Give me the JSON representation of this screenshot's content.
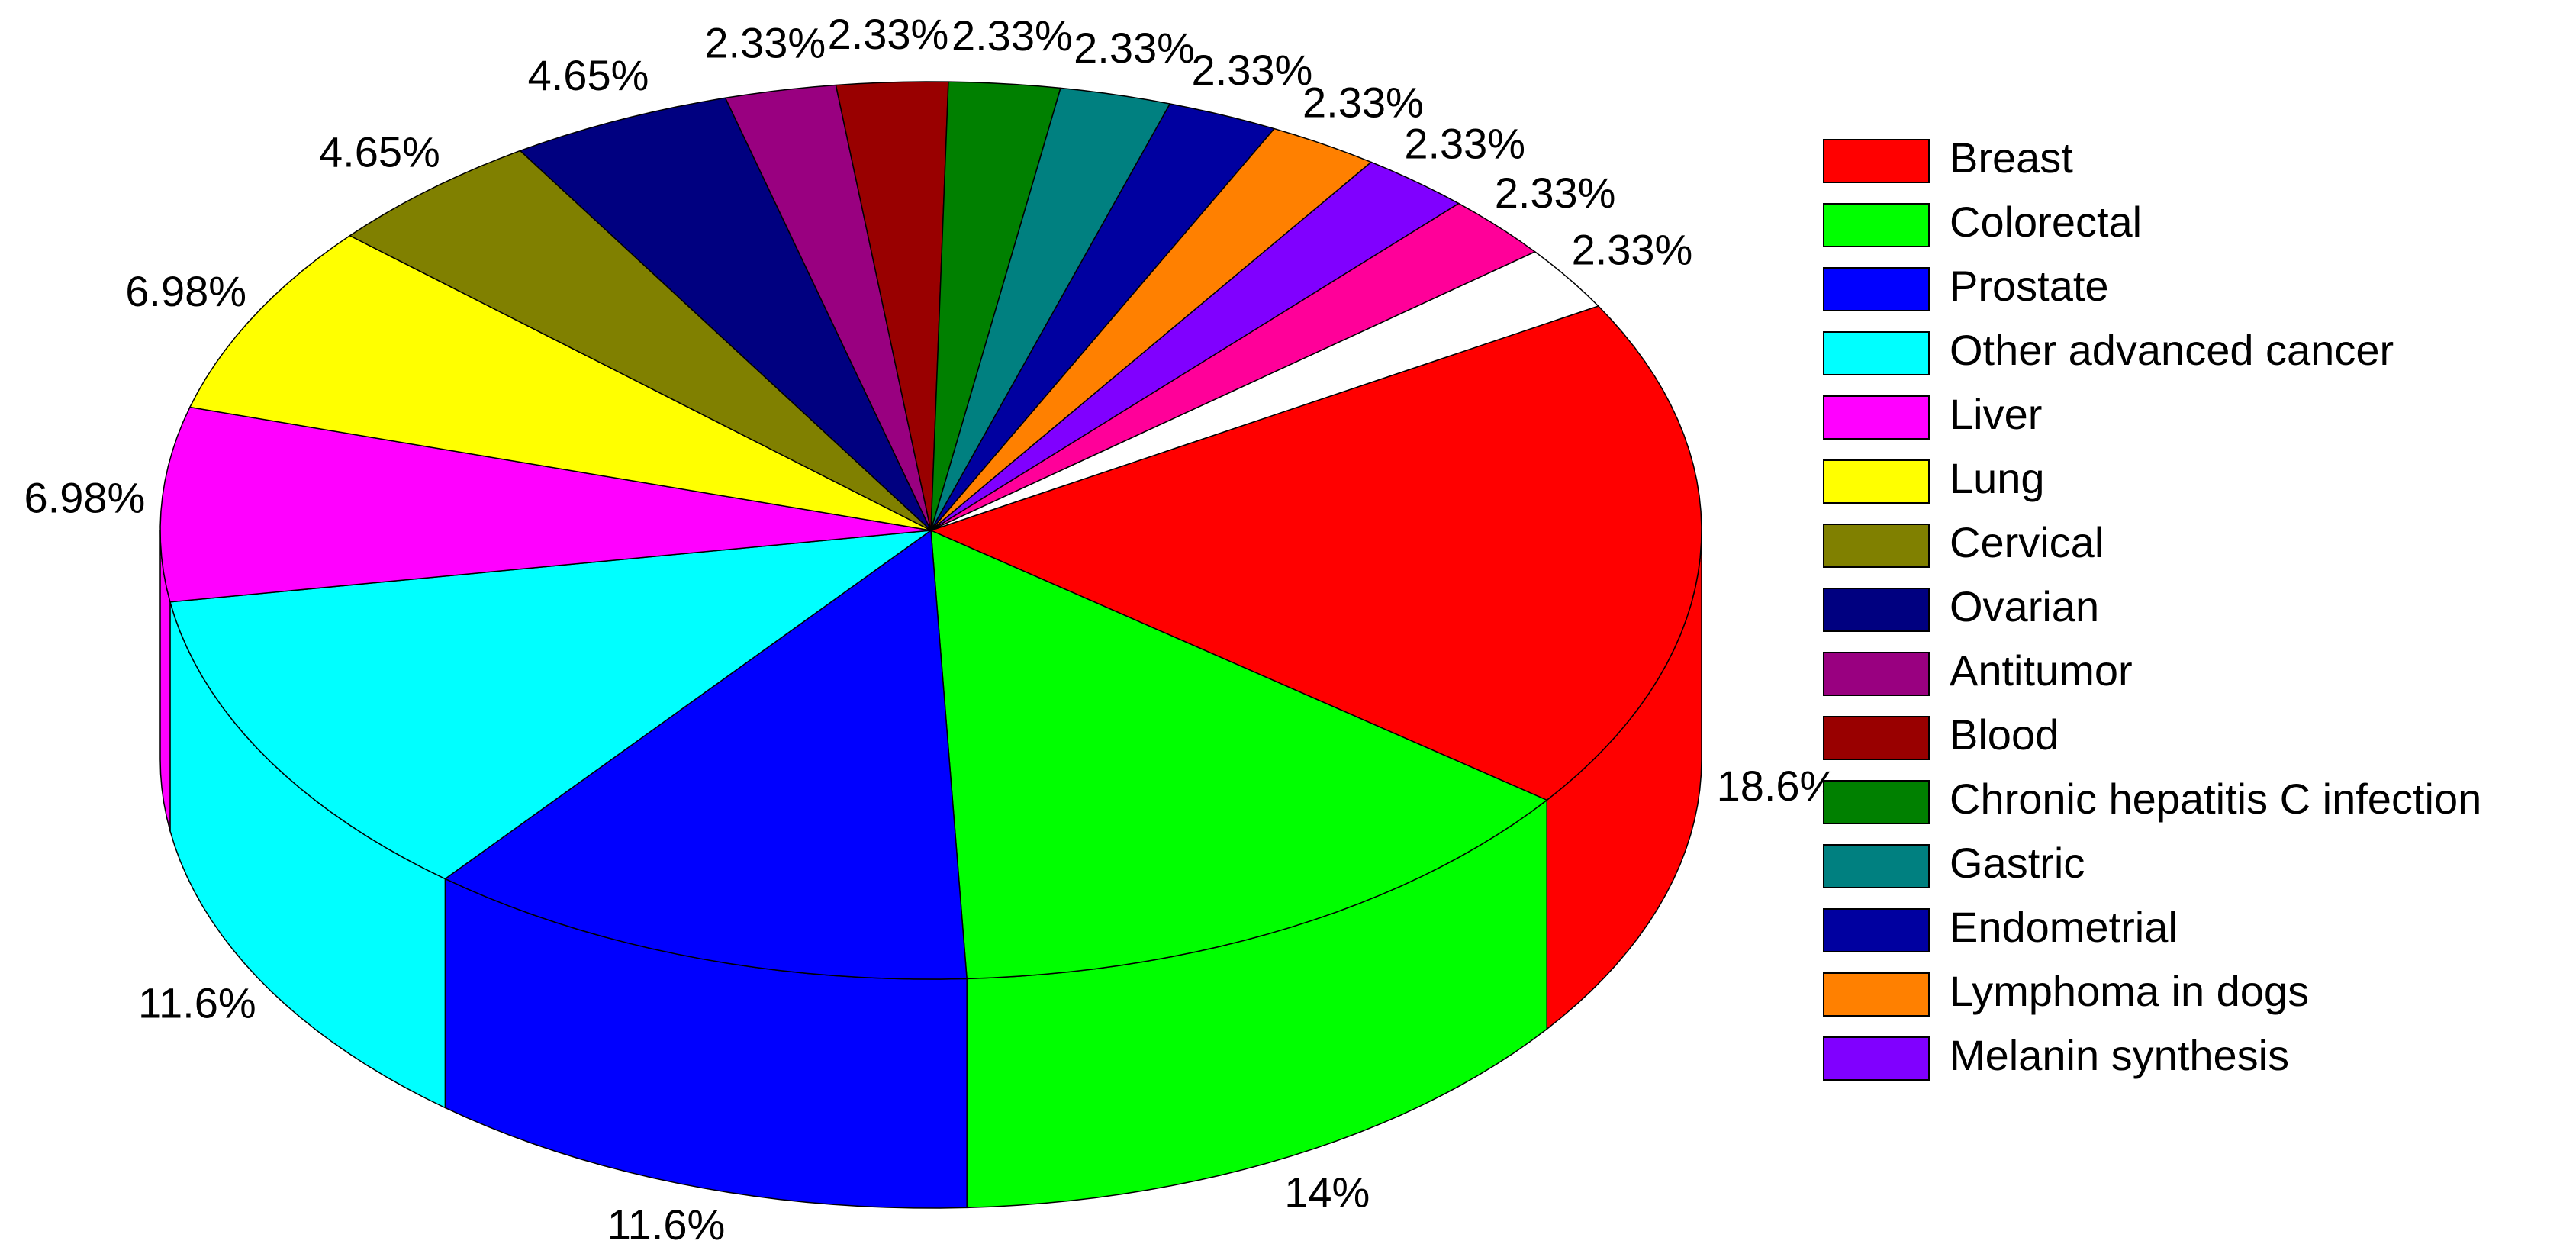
{
  "chart_data": {
    "type": "pie3d",
    "categories": [
      "Breast",
      "Colorectal",
      "Prostate",
      "Other advanced cancer",
      "Liver",
      "Lung",
      "Cervical",
      "Ovarian",
      "Antitumor",
      "Blood",
      "Chronic hepatitis C infection",
      "Gastric",
      "Endometrial",
      "Lymphoma in dogs",
      "Melanin synthesis",
      null,
      null
    ],
    "values": [
      18.6,
      14,
      11.6,
      11.6,
      6.98,
      6.98,
      4.65,
      4.65,
      2.33,
      2.33,
      2.33,
      2.33,
      2.33,
      2.33,
      2.33,
      2.33,
      2.33
    ],
    "value_labels": [
      "18.6%",
      "14%",
      "11.6%",
      "11.6%",
      "6.98%",
      "6.98%",
      "4.65%",
      "4.65%",
      "2.33%",
      "2.33%",
      "2.33%",
      "2.33%",
      "2.33%",
      "2.33%",
      "2.33%",
      "2.33%",
      "2.33%"
    ],
    "colors": [
      "#ff0000",
      "#00ff00",
      "#0000ff",
      "#00ffff",
      "#ff00ff",
      "#ffff00",
      "#808000",
      "#000080",
      "#990080",
      "#990000",
      "#008000",
      "#008080",
      "#0000a0",
      "#ff8000",
      "#8000ff",
      "#ff0099",
      "#ffffff"
    ],
    "legend": "right"
  }
}
